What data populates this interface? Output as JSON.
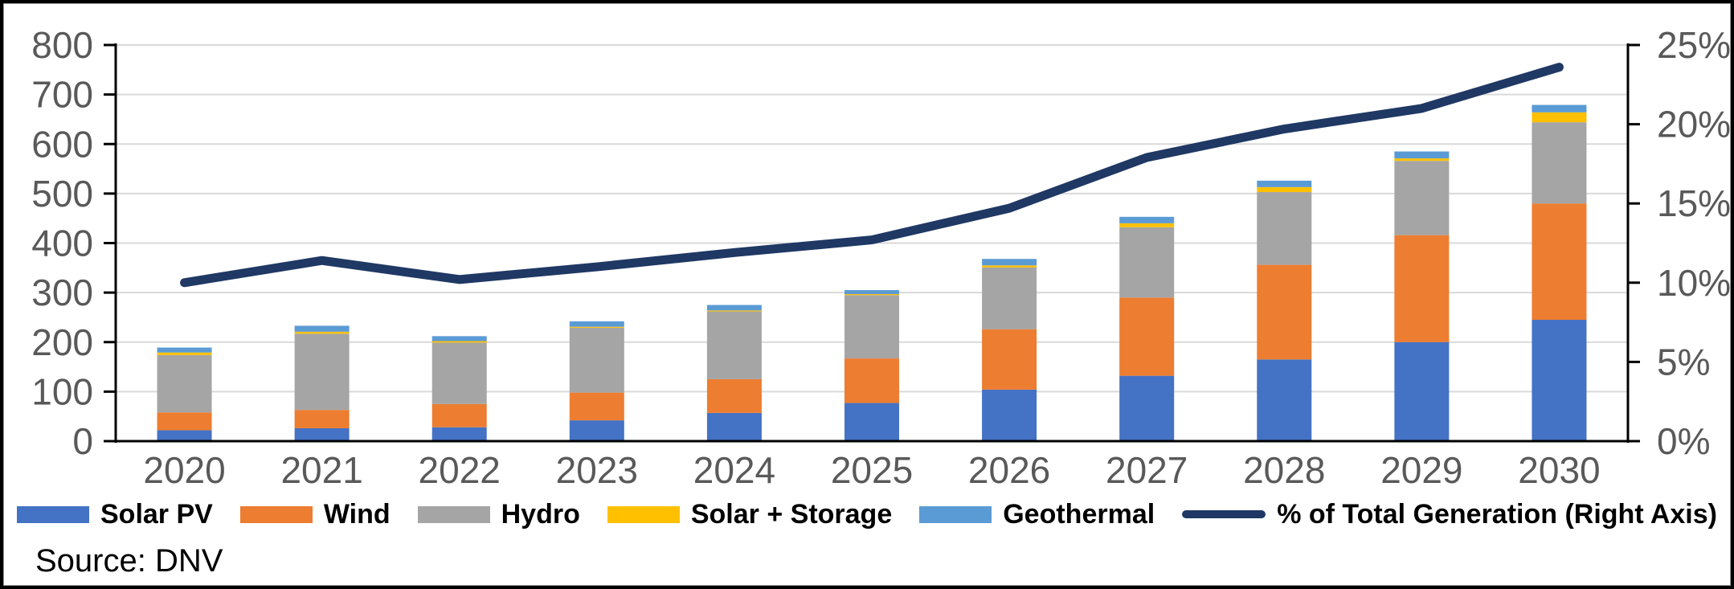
{
  "source_note": "Source: DNV",
  "colors": {
    "grid": "#d9d9d9",
    "axis": "#000000",
    "tick_label": "#595959",
    "legend_text": "#000000"
  },
  "chart_data": {
    "type": "combo: stacked bar + line (dual axis)",
    "categories": [
      "2020",
      "2021",
      "2022",
      "2023",
      "2024",
      "2025",
      "2026",
      "2027",
      "2028",
      "2029",
      "2030"
    ],
    "series": [
      {
        "name": "Solar PV",
        "color": "#4472C4",
        "values": [
          22,
          26,
          28,
          42,
          57,
          77,
          104,
          132,
          165,
          200,
          245
        ]
      },
      {
        "name": "Wind",
        "color": "#ED7D31",
        "values": [
          36,
          37,
          47,
          56,
          68,
          90,
          122,
          158,
          191,
          216,
          235
        ]
      },
      {
        "name": "Hydro",
        "color": "#A5A5A5",
        "values": [
          116,
          154,
          124,
          131,
          137,
          128,
          125,
          142,
          147,
          150,
          164
        ]
      },
      {
        "name": "Solar + Storage",
        "color": "#FFC000",
        "values": [
          5,
          4,
          3,
          2,
          2,
          2,
          4,
          8,
          10,
          5,
          20
        ]
      },
      {
        "name": "Geothermal",
        "color": "#5B9BD5",
        "values": [
          10,
          12,
          10,
          11,
          11,
          8,
          13,
          13,
          13,
          14,
          15
        ]
      }
    ],
    "line_series": {
      "name": "% of Total Generation (Right Axis)",
      "color": "#1F3864",
      "axis": "right",
      "values": [
        10.0,
        11.4,
        10.2,
        11.0,
        11.9,
        12.7,
        14.7,
        17.9,
        19.7,
        21.0,
        23.6
      ]
    },
    "left_axis": {
      "min": 0,
      "max": 800,
      "step": 100,
      "tick_labels": [
        "0",
        "100",
        "200",
        "300",
        "400",
        "500",
        "600",
        "700",
        "800"
      ]
    },
    "right_axis": {
      "min": 0,
      "max": 25,
      "step": 5,
      "tick_labels": [
        "0%",
        "5%",
        "10%",
        "15%",
        "20%",
        "25%"
      ]
    },
    "grid": true,
    "legend_position": "bottom"
  }
}
